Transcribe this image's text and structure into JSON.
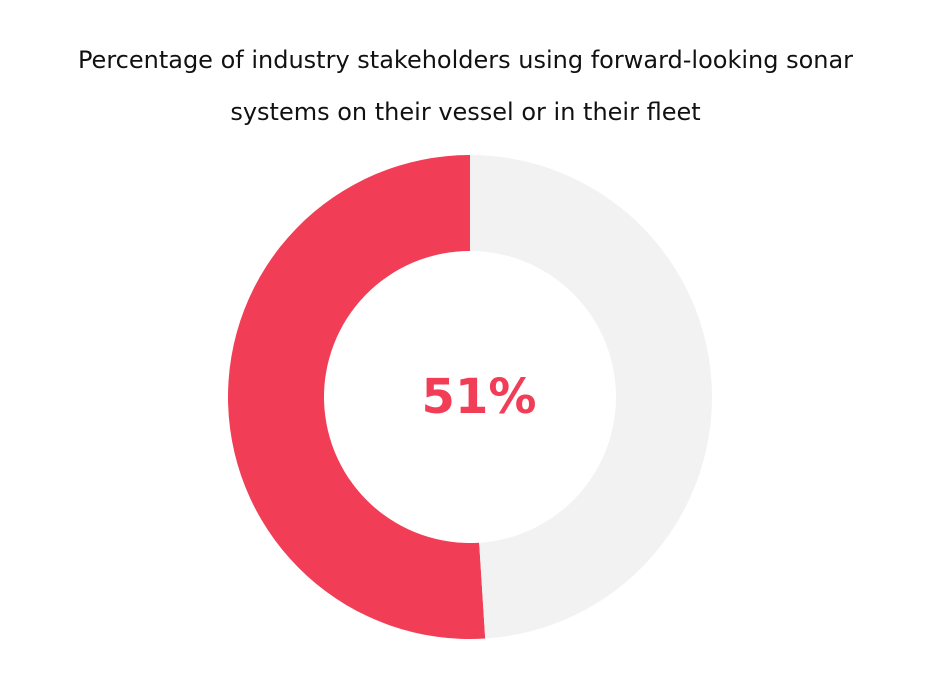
{
  "chart_data": {
    "type": "pie",
    "title": "Percentage of industry stakeholders using forward-looking sonar systems on their vessel or in their fleet",
    "categories": [
      "",
      ""
    ],
    "values": [
      51,
      49
    ],
    "center_label": "51%",
    "colors": [
      "#f13d56",
      "#f2f2f2"
    ]
  }
}
